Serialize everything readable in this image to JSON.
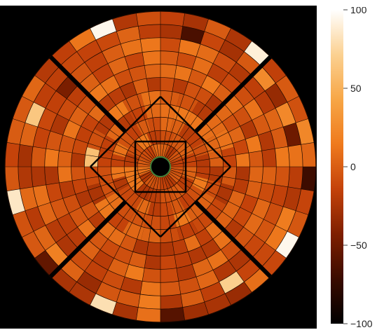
{
  "figure": {
    "background": "#000000",
    "colorbar": {
      "min": -100,
      "max": 100,
      "ticks": [
        {
          "value": 100,
          "label": "100"
        },
        {
          "value": 50,
          "label": "50"
        },
        {
          "value": 0,
          "label": "0"
        },
        {
          "value": -50,
          "label": "−50"
        },
        {
          "value": -100,
          "label": "−100"
        }
      ],
      "colormap": [
        "#000000",
        "#3a0b00",
        "#7f1f00",
        "#c4420a",
        "#ef7a1d",
        "#f7a646",
        "#fbd191",
        "#ffffff"
      ]
    },
    "detector_map": {
      "rings": 11,
      "sectors": 40,
      "center_hole_color": "#000000",
      "center_ring_color": "#3f7f3a",
      "base_color": "#ef8a2a",
      "bright_spots": [
        {
          "ring": 10,
          "sector": 3,
          "level": 95
        },
        {
          "ring": 10,
          "sector": 12,
          "level": 80
        },
        {
          "ring": 10,
          "sector": 18,
          "level": 85
        },
        {
          "ring": 10,
          "sector": 27,
          "level": 95
        },
        {
          "ring": 10,
          "sector": 34,
          "level": 90
        },
        {
          "ring": 9,
          "sector": 6,
          "level": 70
        },
        {
          "ring": 9,
          "sector": 22,
          "level": 65
        },
        {
          "ring": 4,
          "sector": 20,
          "level": 60
        }
      ],
      "dark_spots": [
        {
          "ring": 10,
          "sector": 0,
          "level": -70
        },
        {
          "ring": 10,
          "sector": 9,
          "level": -60
        },
        {
          "ring": 10,
          "sector": 15,
          "level": -55
        },
        {
          "ring": 9,
          "sector": 31,
          "level": -65
        },
        {
          "ring": 9,
          "sector": 38,
          "level": -50
        },
        {
          "ring": 8,
          "sector": 24,
          "level": -45
        }
      ]
    }
  }
}
